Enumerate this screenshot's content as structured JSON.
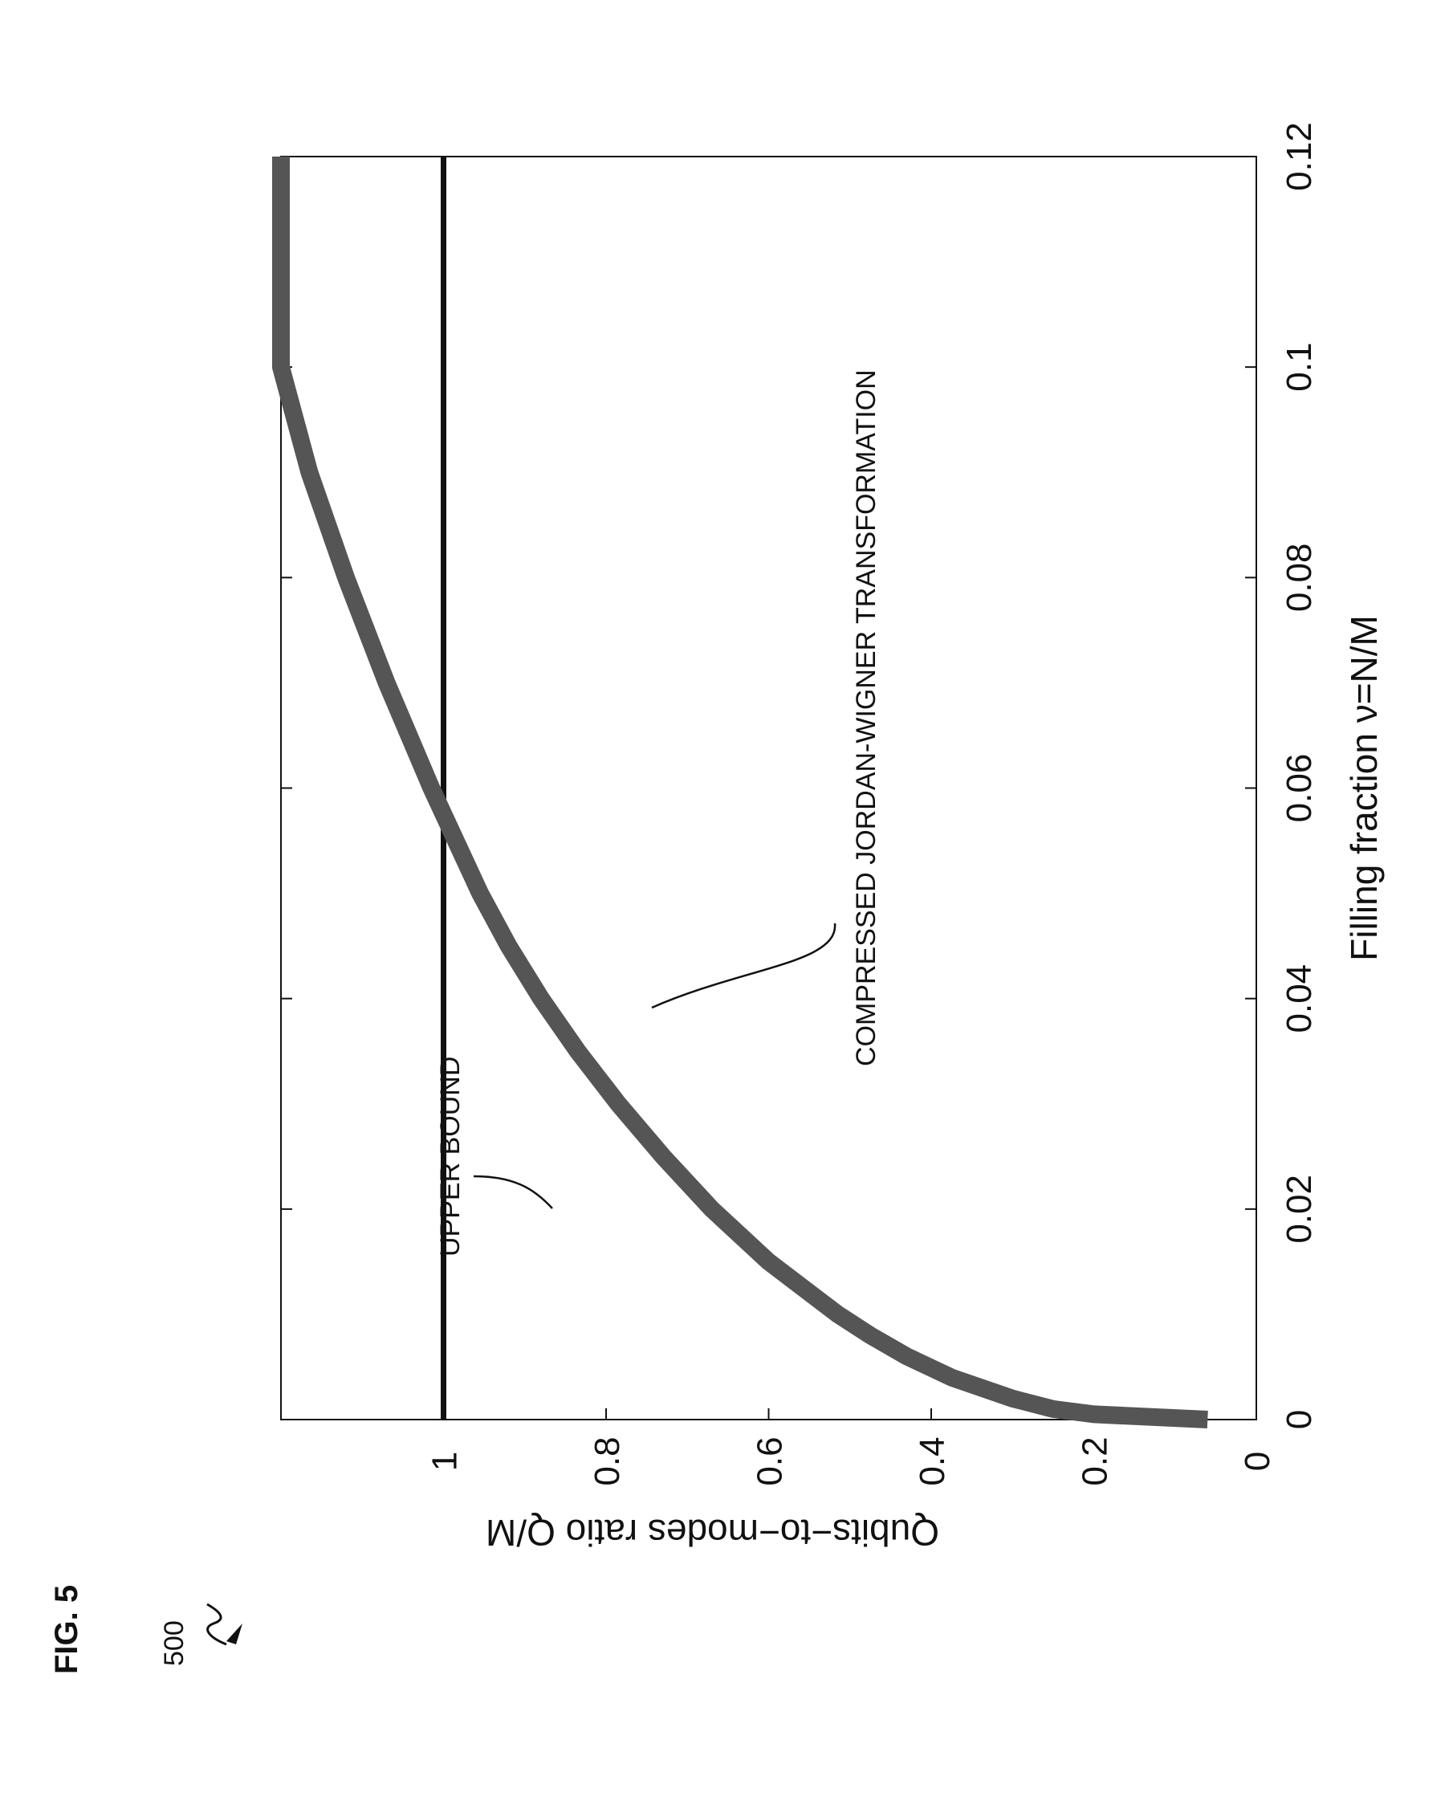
{
  "figure": {
    "label": "FIG. 5",
    "ref_number": "500"
  },
  "chart_data": {
    "type": "line",
    "orientation": "rotated-90-ccw",
    "xlabel": "Filling fraction ν=N/M",
    "ylabel": "Qubits−to−modes ratio Q/M",
    "xlim": [
      0,
      0.12
    ],
    "ylim": [
      0,
      1.2
    ],
    "xticks": [
      0,
      0.02,
      0.04,
      0.06,
      0.08,
      0.1,
      0.12
    ],
    "xtick_labels": [
      "0",
      "0.02",
      "0.04",
      "0.06",
      "0.08",
      "0.1",
      "0.12"
    ],
    "yticks": [
      0,
      0.2,
      0.4,
      0.6,
      0.8,
      1
    ],
    "ytick_labels": [
      "0",
      "0.2",
      "0.4",
      "0.6",
      "0.8",
      "1"
    ],
    "grid": false,
    "series": [
      {
        "name": "UPPER BOUND",
        "color": "#111111",
        "x": [
          0,
          0.12
        ],
        "y": [
          1,
          1
        ]
      },
      {
        "name": "COMPRESSED JORDAN-WIGNER TRANSFORMATION",
        "color": "#555555",
        "x": [
          0.0,
          0.0005,
          0.001,
          0.002,
          0.004,
          0.006,
          0.008,
          0.01,
          0.015,
          0.02,
          0.025,
          0.03,
          0.035,
          0.04,
          0.045,
          0.05,
          0.055,
          0.06,
          0.07,
          0.08,
          0.09,
          0.1,
          0.11,
          0.12
        ],
        "y": [
          0.06,
          0.2,
          0.25,
          0.3,
          0.375,
          0.43,
          0.475,
          0.515,
          0.6,
          0.67,
          0.73,
          0.785,
          0.835,
          0.88,
          0.92,
          0.955,
          0.985,
          1.015,
          1.07,
          1.12,
          1.165,
          1.205,
          1.24,
          1.27
        ]
      }
    ]
  }
}
